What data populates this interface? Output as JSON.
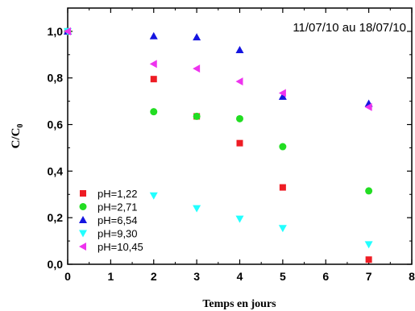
{
  "chart_data": {
    "type": "scatter",
    "title": "",
    "annotation": "11/07/10 au 18/07/10",
    "xlabel": "Temps en jours",
    "ylabel_main": "C/C",
    "ylabel_sub": "0",
    "xlim": [
      0,
      8
    ],
    "ylim": [
      0,
      1.1
    ],
    "xticks": [
      "0",
      "1",
      "2",
      "3",
      "4",
      "5",
      "6",
      "7",
      "8"
    ],
    "yticks": [
      "0,0",
      "0,2",
      "0,4",
      "0,6",
      "0,8",
      "1,0"
    ],
    "grid": false,
    "legend_position": "bottom-left",
    "series": [
      {
        "name": "pH=1,22",
        "marker": "square",
        "color": "#ee1c24",
        "x": [
          0,
          2,
          3,
          4,
          5,
          7
        ],
        "y": [
          1.0,
          0.795,
          0.635,
          0.52,
          0.33,
          0.02
        ]
      },
      {
        "name": "pH=2,71",
        "marker": "circle",
        "color": "#22dd22",
        "x": [
          0,
          2,
          3,
          4,
          5,
          7
        ],
        "y": [
          1.0,
          0.655,
          0.635,
          0.625,
          0.505,
          0.315
        ]
      },
      {
        "name": "pH=6,54",
        "marker": "triangle-up",
        "color": "#1515e0",
        "x": [
          0,
          2,
          3,
          4,
          5,
          7
        ],
        "y": [
          1.0,
          0.98,
          0.975,
          0.92,
          0.72,
          0.69
        ]
      },
      {
        "name": "pH=9,30",
        "marker": "triangle-down",
        "color": "#22ffff",
        "x": [
          0,
          2,
          3,
          4,
          5,
          7
        ],
        "y": [
          1.0,
          0.295,
          0.24,
          0.195,
          0.155,
          0.085
        ]
      },
      {
        "name": "pH=10,45",
        "marker": "triangle-left",
        "color": "#ee33ee",
        "x": [
          0,
          2,
          3,
          4,
          5,
          7
        ],
        "y": [
          1.0,
          0.86,
          0.84,
          0.785,
          0.735,
          0.675
        ]
      }
    ]
  }
}
